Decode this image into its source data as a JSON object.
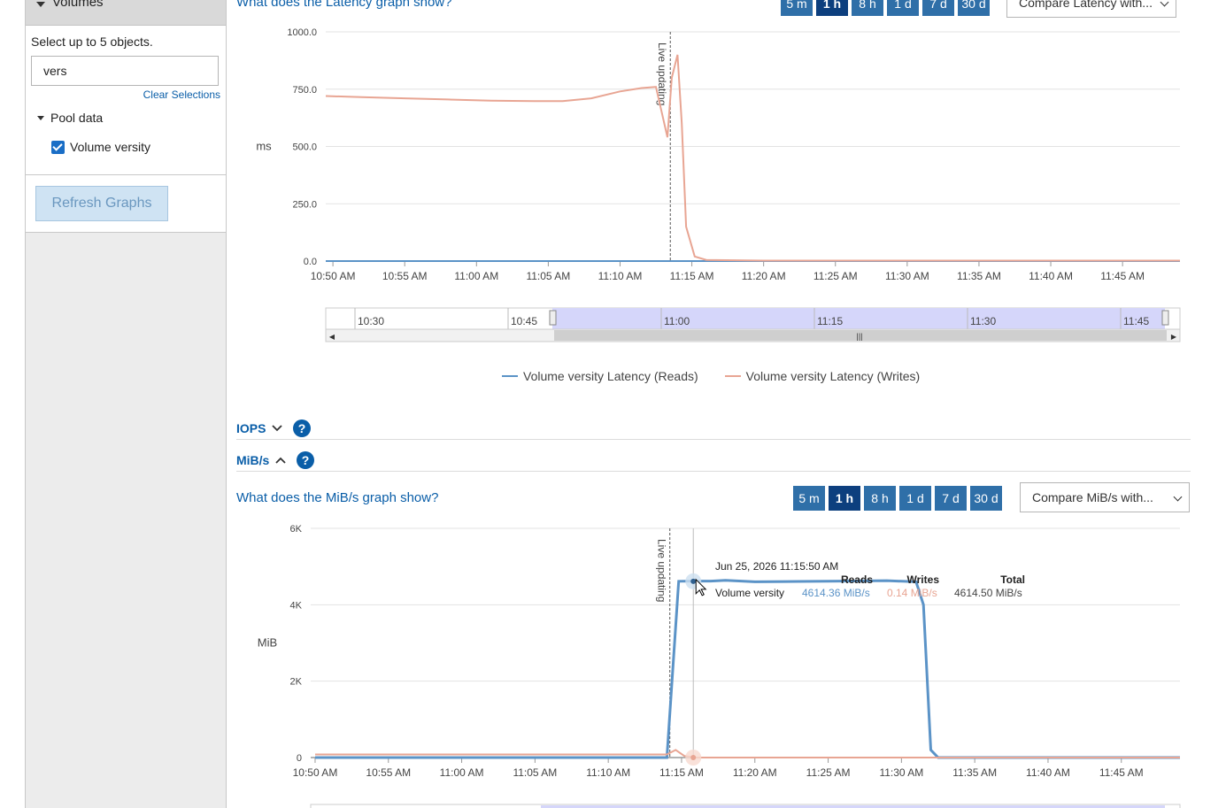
{
  "sidebar": {
    "header": "Volumes",
    "hint": "Select up to 5 objects.",
    "search_value": "vers",
    "clear_label": "Clear Selections",
    "tree_group": "Pool data",
    "tree_item": "Volume versity",
    "refresh_label": "Refresh Graphs"
  },
  "latency": {
    "question": "What does the Latency graph show?",
    "ranges": [
      "5 m",
      "1 h",
      "8 h",
      "1 d",
      "7 d",
      "30 d"
    ],
    "active_range": "1 h",
    "compare": "Compare Latency with...",
    "ylabel": "ms",
    "live_label": "Live updating",
    "navigator_labels": [
      "10:30",
      "10:45",
      "11:00",
      "11:15",
      "11:30",
      "11:45"
    ],
    "legend": [
      "Volume versity Latency (Reads)",
      "Volume versity Latency (Writes)"
    ]
  },
  "sections": {
    "iops": "IOPS",
    "mibs": "MiB/s"
  },
  "mibs": {
    "question": "What does the MiB/s graph show?",
    "ranges": [
      "5 m",
      "1 h",
      "8 h",
      "1 d",
      "7 d",
      "30 d"
    ],
    "active_range": "1 h",
    "compare": "Compare MiB/s with...",
    "ylabel": "MiB",
    "live_label": "Live updating",
    "tooltip": {
      "time": "Jun 25, 2026 11:15:50 AM",
      "headers": [
        "Reads",
        "Writes",
        "Total"
      ],
      "row_label": "Volume versity",
      "reads": "4614.36 MiB/s",
      "writes": "0.14 MiB/s",
      "total": "4614.50 MiB/s"
    }
  },
  "colors": {
    "reads": "#5b93c7",
    "writes": "#e8a593",
    "accent": "#0a5ea8"
  },
  "chart_data": [
    {
      "type": "line",
      "ylabel": "ms",
      "yticks": [
        "0.0",
        "250.0",
        "500.0",
        "750.0",
        "1000.0"
      ],
      "ylim": [
        0,
        1000
      ],
      "xticks": [
        "10:50 AM",
        "10:55 AM",
        "11:00 AM",
        "11:05 AM",
        "11:10 AM",
        "11:15 AM",
        "11:20 AM",
        "11:25 AM",
        "11:30 AM",
        "11:35 AM",
        "11:40 AM",
        "11:45 AM"
      ],
      "xlim_min": [
        49.5,
        109
      ],
      "series": [
        {
          "name": "Volume versity Latency (Reads)",
          "x": [
            49.5,
            109
          ],
          "y": [
            0,
            0
          ]
        },
        {
          "name": "Volume versity Latency (Writes)",
          "x": [
            49.5,
            52,
            55,
            58,
            61,
            64,
            66,
            68,
            70,
            71.5,
            72.5,
            73.3,
            73.6,
            74,
            74.3,
            74.6,
            75.2,
            76,
            80,
            90,
            100,
            109
          ],
          "y": [
            720,
            715,
            710,
            705,
            700,
            698,
            698,
            710,
            740,
            755,
            760,
            540,
            800,
            900,
            600,
            150,
            20,
            5,
            2,
            2,
            2,
            2
          ]
        }
      ],
      "grid": true,
      "legend": "bottom"
    },
    {
      "type": "line",
      "ylabel": "MiB",
      "yticks": [
        "0",
        "2K",
        "4K",
        "6K"
      ],
      "ylim": [
        0,
        6000
      ],
      "xticks": [
        "10:50 AM",
        "10:55 AM",
        "11:00 AM",
        "11:05 AM",
        "11:10 AM",
        "11:15 AM",
        "11:20 AM",
        "11:25 AM",
        "11:30 AM",
        "11:35 AM",
        "11:40 AM",
        "11:45 AM"
      ],
      "xlim_min": [
        50,
        109
      ],
      "series": [
        {
          "name": "Reads",
          "x": [
            50,
            73,
            74,
            74.8,
            75.8,
            77,
            78,
            80,
            83,
            86,
            89,
            91,
            91.5,
            92,
            92.5,
            109
          ],
          "y": [
            0,
            0,
            0,
            4614,
            4620,
            4620,
            4640,
            4600,
            4610,
            4620,
            4630,
            4600,
            4000,
            200,
            0,
            0
          ]
        },
        {
          "name": "Writes",
          "x": [
            50,
            73,
            74,
            74.6,
            75.2,
            76,
            109
          ],
          "y": [
            80,
            80,
            80,
            200,
            40,
            0.14,
            0.14
          ]
        }
      ],
      "grid": true
    }
  ]
}
